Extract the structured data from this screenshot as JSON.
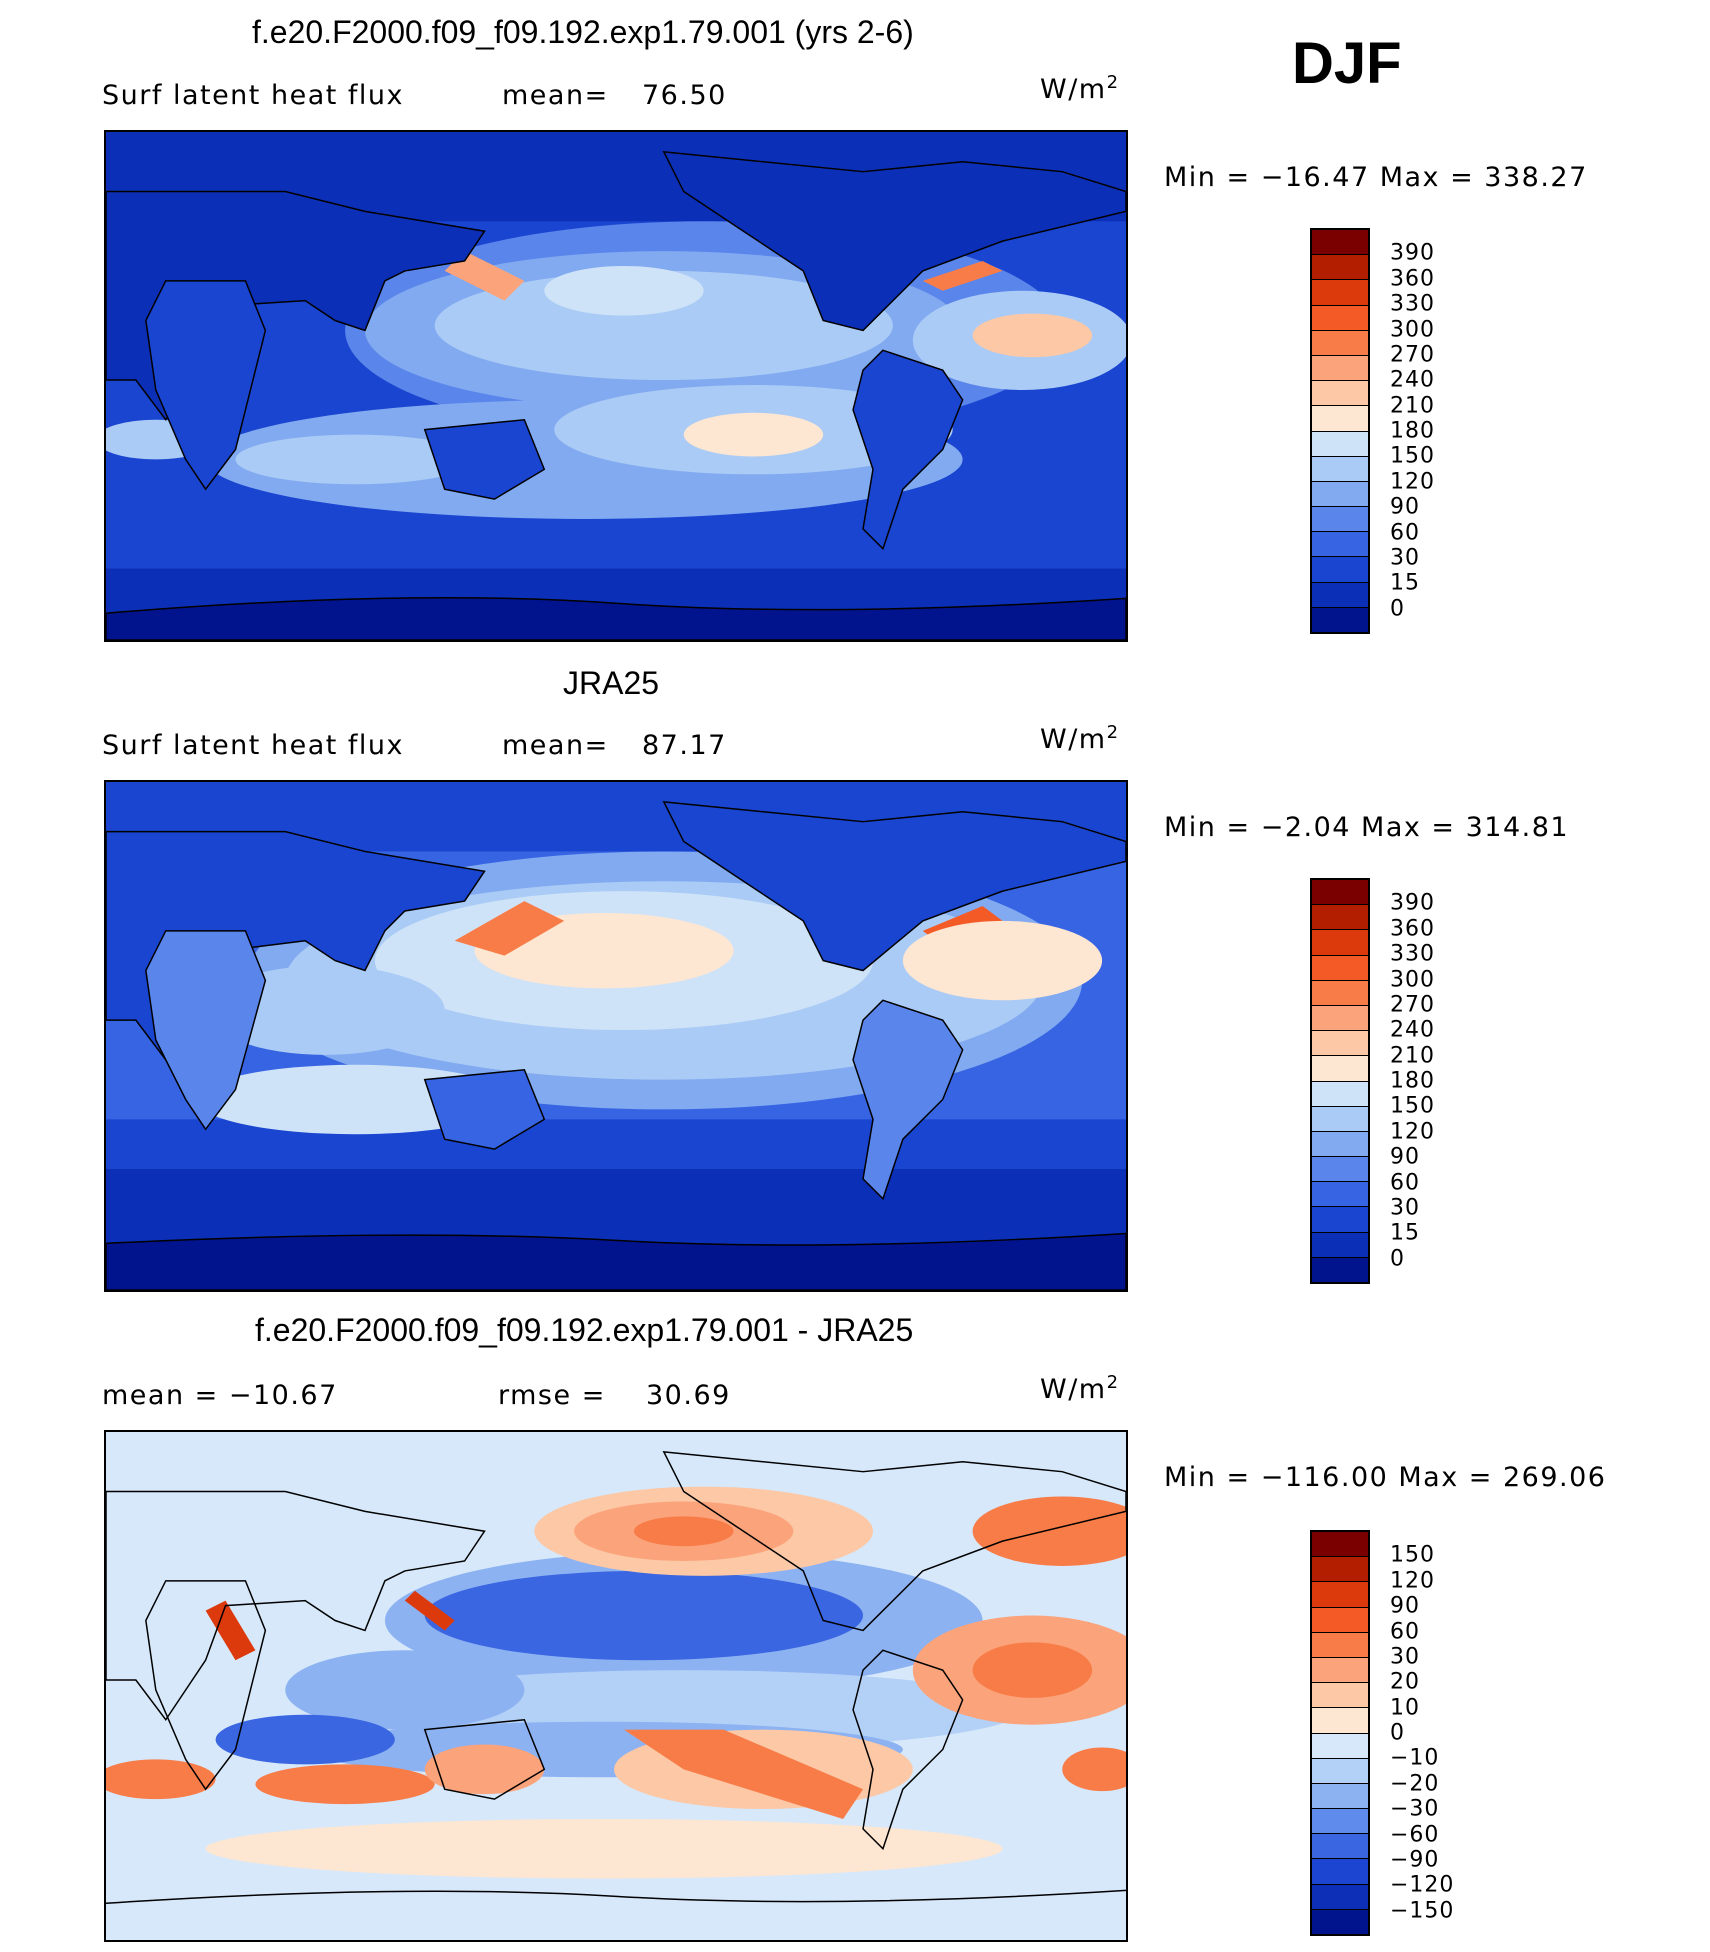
{
  "season": "DJF",
  "units": "W/m2",
  "units_base": "W/m",
  "units_exp": "2",
  "panels": [
    {
      "title": "f.e20.F2000.f09_f09.192.exp1.79.001 (yrs 2-6)",
      "left_label": "Surf  latent  heat  flux",
      "stat_label": "mean=",
      "stat_value": "76.50",
      "minmax": "Min  =  −16.47  Max  =  338.27",
      "levels": [
        "390",
        "360",
        "330",
        "300",
        "270",
        "240",
        "210",
        "180",
        "150",
        "120",
        "90",
        "60",
        "30",
        "15",
        "0"
      ],
      "colors": [
        "#7a0000",
        "#b41e00",
        "#dc3a0c",
        "#f45a26",
        "#f87c48",
        "#fba37a",
        "#fcc8a6",
        "#fde6d2",
        "#cfe3f8",
        "#aacbf5",
        "#82aaf0",
        "#5a85ea",
        "#3764e2",
        "#1a45d0",
        "#0c2fb8",
        "#02138e"
      ]
    },
    {
      "title": "JRA25",
      "left_label": "Surf  latent  heat  flux",
      "stat_label": "mean=",
      "stat_value": "87.17",
      "minmax": "Min  =   −2.04  Max  =  314.81",
      "levels": [
        "390",
        "360",
        "330",
        "300",
        "270",
        "240",
        "210",
        "180",
        "150",
        "120",
        "90",
        "60",
        "30",
        "15",
        "0"
      ],
      "colors": [
        "#7a0000",
        "#b41e00",
        "#dc3a0c",
        "#f45a26",
        "#f87c48",
        "#fba37a",
        "#fcc8a6",
        "#fde6d2",
        "#cfe3f8",
        "#aacbf5",
        "#82aaf0",
        "#5a85ea",
        "#3764e2",
        "#1a45d0",
        "#0c2fb8",
        "#02138e"
      ]
    },
    {
      "title": "f.e20.F2000.f09_f09.192.exp1.79.001 - JRA25",
      "left_label": "mean  =  −10.67",
      "stat_label": "rmse  =",
      "stat_value": "30.69",
      "minmax": "Min  =  −116.00  Max  =  269.06",
      "levels": [
        "150",
        "120",
        "90",
        "60",
        "30",
        "20",
        "10",
        "0",
        "−10",
        "−20",
        "−30",
        "−60",
        "−90",
        "−120",
        "−150"
      ],
      "colors": [
        "#7a0000",
        "#b41e00",
        "#dc3a0c",
        "#f45a26",
        "#f87c48",
        "#fba37a",
        "#fcc8a6",
        "#fde6d2",
        "#d6e8fa",
        "#b3d0f7",
        "#8cb2f2",
        "#5f8cec",
        "#3a66e2",
        "#1c46d2",
        "#0d2fb8",
        "#02138e"
      ]
    }
  ]
}
